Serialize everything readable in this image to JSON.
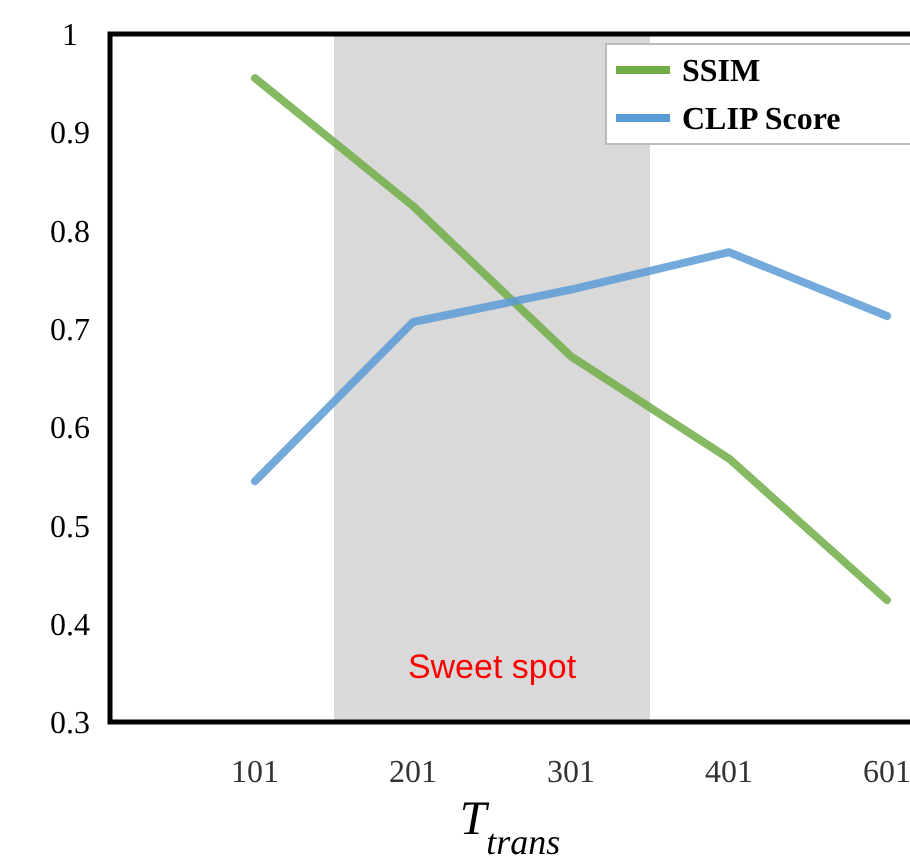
{
  "chart_data": {
    "type": "line",
    "xlabel": "T$_{trans}$",
    "categories": [
      "101",
      "201",
      "301",
      "401",
      "601"
    ],
    "series": [
      {
        "name": "SSIM",
        "color": "#70ad47",
        "values": [
          0.955,
          0.825,
          0.672,
          0.568,
          0.424
        ]
      },
      {
        "name": "CLIP Score",
        "color": "#5b9bd5",
        "values": [
          0.545,
          0.707,
          0.74,
          0.778,
          0.713
        ]
      }
    ],
    "ylim": [
      0.3,
      1
    ],
    "yticks": [
      0.3,
      0.4,
      0.5,
      0.6,
      0.7,
      0.8,
      0.9,
      1
    ],
    "bands": [
      {
        "axis": "x",
        "from": "201",
        "to": "301",
        "label": "Sweet spot",
        "color": "#d9d9d9"
      }
    ],
    "grid": false,
    "legend": "top right",
    "line_style": "solid",
    "marker": "none"
  }
}
